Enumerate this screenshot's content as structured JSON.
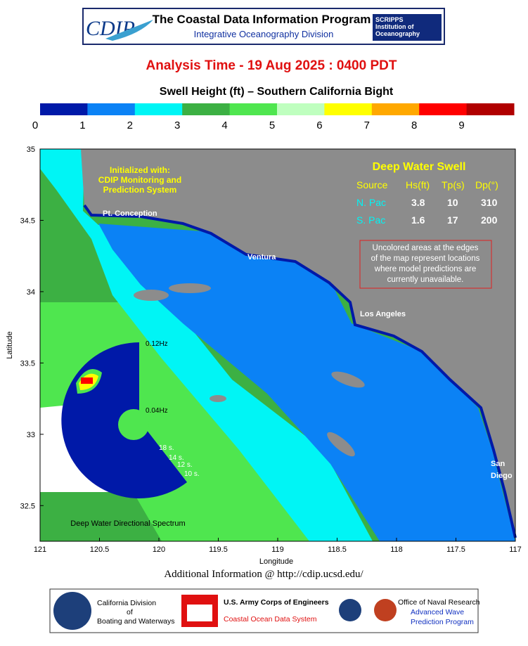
{
  "header": {
    "logo": "CDIP",
    "title": "The Coastal Data Information Program",
    "subtitle": "Integrative Oceanography Division",
    "partner": [
      "SCRIPPS",
      "Institution of",
      "Oceanography"
    ]
  },
  "analysis_time": "Analysis Time -  19 Aug 2025 : 0400 PDT",
  "map_title": "Swell Height (ft) – Southern California Bight",
  "colorbar": {
    "ticks": [
      0,
      1,
      2,
      3,
      4,
      5,
      6,
      7,
      8,
      9
    ],
    "colors": [
      "#0019a8",
      "#0b82f5",
      "#00f5f5",
      "#3cb043",
      "#4fe64f",
      "#bfffbf",
      "#ffff00",
      "#ffa800",
      "#ff0000",
      "#b00000"
    ]
  },
  "map": {
    "xlim": [
      121,
      117
    ],
    "xticks": [
      121,
      120.5,
      120,
      119.5,
      119,
      118.5,
      118,
      117.5,
      117
    ],
    "ylim": [
      32.25,
      35
    ],
    "yticks": [
      32.5,
      33,
      33.5,
      34,
      34.5,
      35
    ],
    "xlabel": "Longitude",
    "ylabel": "Latitude",
    "places": [
      "Pt. Conception",
      "Ventura",
      "Los Angeles",
      "San",
      "Diego"
    ],
    "init": [
      "Initialized with:",
      "CDIP Monitoring and",
      "Prediction System"
    ],
    "swell": {
      "title": "Deep Water Swell",
      "header": [
        "Source",
        "Hs(ft)",
        "Tp(s)",
        "Dp(°)"
      ],
      "rows": [
        [
          "N. Pac",
          3.8,
          10,
          310
        ],
        [
          "S. Pac",
          1.6,
          17,
          200
        ]
      ]
    },
    "note": [
      "Uncolored areas at the edges",
      "of the map represent locations",
      "where model predictions are",
      "currently unavailable."
    ],
    "spectrum": {
      "labels": [
        "0.12Hz",
        "0.04Hz",
        "18 s.",
        "14 s.",
        "12 s.",
        "10 s."
      ],
      "title": "Deep Water Directional Spectrum"
    }
  },
  "footer": {
    "info": "Additional Information @ http://cdip.ucsd.edu/",
    "sponsors": [
      [
        "California Division",
        "of",
        "Boating and Waterways"
      ],
      [
        "U.S. Army Corps of Engineers",
        "Coastal Ocean Data System"
      ],
      [
        "Office of Naval Research",
        "Advanced Wave",
        "Prediction Program"
      ]
    ]
  }
}
